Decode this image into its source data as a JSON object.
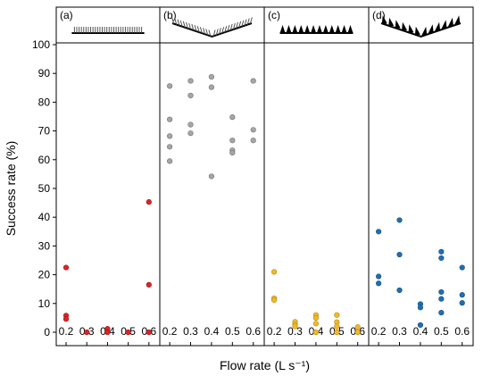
{
  "chart_data": {
    "type": "scatter",
    "ylabel": "Success rate (%)",
    "xlabel": "Flow rate (L s⁻¹)",
    "ylim": [
      0,
      100
    ],
    "yticks": [
      0,
      10,
      20,
      30,
      40,
      50,
      60,
      70,
      80,
      90,
      100
    ],
    "xticks": [
      "0.2",
      "0.3",
      "0.4",
      "0.5",
      "0.6"
    ],
    "grid": false,
    "panels": [
      {
        "label": "(a)",
        "color": "#d62728",
        "points": [
          {
            "x": 0.2,
            "y": 22.5
          },
          {
            "x": 0.2,
            "y": 5.8
          },
          {
            "x": 0.2,
            "y": 4.6
          },
          {
            "x": 0.3,
            "y": 0
          },
          {
            "x": 0.4,
            "y": 1.2
          },
          {
            "x": 0.4,
            "y": 0
          },
          {
            "x": 0.5,
            "y": 0
          },
          {
            "x": 0.6,
            "y": 45.3
          },
          {
            "x": 0.6,
            "y": 16.5
          },
          {
            "x": 0.6,
            "y": 0
          }
        ]
      },
      {
        "label": "(b)",
        "color": "#a6a6a6",
        "points": [
          {
            "x": 0.2,
            "y": 85.6
          },
          {
            "x": 0.2,
            "y": 74.0
          },
          {
            "x": 0.2,
            "y": 68.2
          },
          {
            "x": 0.2,
            "y": 64.5
          },
          {
            "x": 0.2,
            "y": 59.5
          },
          {
            "x": 0.3,
            "y": 87.4
          },
          {
            "x": 0.3,
            "y": 82.3
          },
          {
            "x": 0.3,
            "y": 72.2
          },
          {
            "x": 0.3,
            "y": 69.2
          },
          {
            "x": 0.4,
            "y": 88.8
          },
          {
            "x": 0.4,
            "y": 85.2
          },
          {
            "x": 0.4,
            "y": 54.2
          },
          {
            "x": 0.5,
            "y": 74.8
          },
          {
            "x": 0.5,
            "y": 66.7
          },
          {
            "x": 0.5,
            "y": 63.3
          },
          {
            "x": 0.5,
            "y": 62.4
          },
          {
            "x": 0.6,
            "y": 87.4
          },
          {
            "x": 0.6,
            "y": 70.4
          },
          {
            "x": 0.6,
            "y": 66.7
          }
        ]
      },
      {
        "label": "(c)",
        "color": "#f0b92d",
        "points": [
          {
            "x": 0.2,
            "y": 21.0
          },
          {
            "x": 0.2,
            "y": 11.8
          },
          {
            "x": 0.2,
            "y": 11.2
          },
          {
            "x": 0.3,
            "y": 3.6
          },
          {
            "x": 0.3,
            "y": 2.6
          },
          {
            "x": 0.3,
            "y": 2.0
          },
          {
            "x": 0.4,
            "y": 6.0
          },
          {
            "x": 0.4,
            "y": 5.0
          },
          {
            "x": 0.4,
            "y": 3.0
          },
          {
            "x": 0.4,
            "y": 0
          },
          {
            "x": 0.5,
            "y": 6.0
          },
          {
            "x": 0.5,
            "y": 3.5
          },
          {
            "x": 0.5,
            "y": 2.0
          },
          {
            "x": 0.5,
            "y": 0
          },
          {
            "x": 0.6,
            "y": 1.8
          },
          {
            "x": 0.6,
            "y": 0
          }
        ]
      },
      {
        "label": "(d)",
        "color": "#1f6fb2",
        "points": [
          {
            "x": 0.2,
            "y": 35.0
          },
          {
            "x": 0.2,
            "y": 19.4
          },
          {
            "x": 0.2,
            "y": 17.0
          },
          {
            "x": 0.3,
            "y": 39.0
          },
          {
            "x": 0.3,
            "y": 27.0
          },
          {
            "x": 0.3,
            "y": 14.6
          },
          {
            "x": 0.4,
            "y": 9.8
          },
          {
            "x": 0.4,
            "y": 8.6
          },
          {
            "x": 0.4,
            "y": 2.5
          },
          {
            "x": 0.5,
            "y": 28.0
          },
          {
            "x": 0.5,
            "y": 25.8
          },
          {
            "x": 0.5,
            "y": 14.0
          },
          {
            "x": 0.5,
            "y": 11.6
          },
          {
            "x": 0.5,
            "y": 6.8
          },
          {
            "x": 0.6,
            "y": 22.5
          },
          {
            "x": 0.6,
            "y": 13.0
          },
          {
            "x": 0.6,
            "y": 10.2
          }
        ]
      }
    ]
  }
}
